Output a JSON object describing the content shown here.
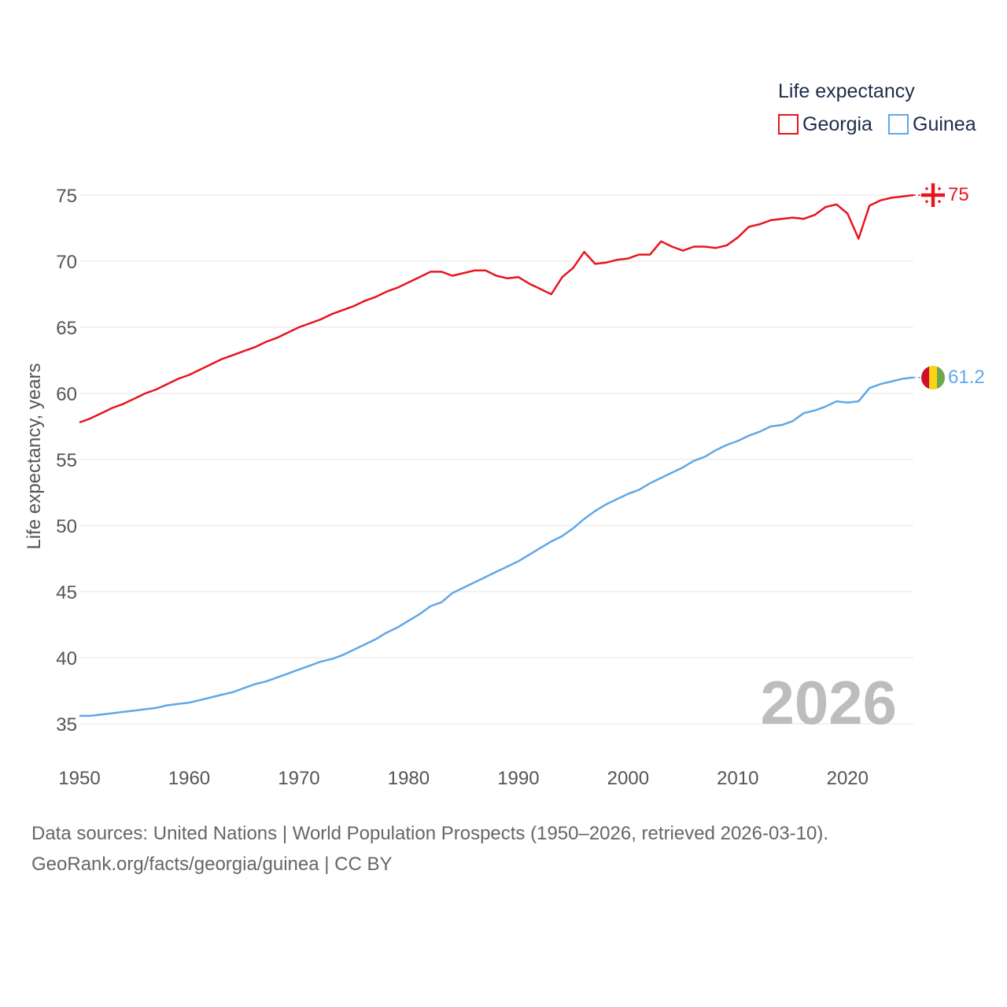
{
  "chart_data": {
    "type": "line",
    "title": "",
    "xlabel": "",
    "ylabel": "Life expectancy, years",
    "xlim": [
      1950,
      2026
    ],
    "ylim": [
      33,
      77
    ],
    "x_ticks": [
      "1950",
      "1960",
      "1970",
      "1980",
      "1990",
      "2000",
      "2010",
      "2020"
    ],
    "y_ticks": [
      "35",
      "40",
      "45",
      "50",
      "55",
      "60",
      "65",
      "70",
      "75"
    ],
    "grid": true,
    "legend_title": "Life expectancy",
    "legend_position": "top-right",
    "watermark_year": "2026",
    "x": [
      1950,
      1951,
      1952,
      1953,
      1954,
      1955,
      1956,
      1957,
      1958,
      1959,
      1960,
      1961,
      1962,
      1963,
      1964,
      1965,
      1966,
      1967,
      1968,
      1969,
      1970,
      1971,
      1972,
      1973,
      1974,
      1975,
      1976,
      1977,
      1978,
      1979,
      1980,
      1981,
      1982,
      1983,
      1984,
      1985,
      1986,
      1987,
      1988,
      1989,
      1990,
      1991,
      1992,
      1993,
      1994,
      1995,
      1996,
      1997,
      1998,
      1999,
      2000,
      2001,
      2002,
      2003,
      2004,
      2005,
      2006,
      2007,
      2008,
      2009,
      2010,
      2011,
      2012,
      2013,
      2014,
      2015,
      2016,
      2017,
      2018,
      2019,
      2020,
      2021,
      2022,
      2023,
      2024,
      2025,
      2026
    ],
    "series": [
      {
        "name": "Georgia",
        "color": "#e8141e",
        "end_label": "75",
        "values": [
          57.8,
          58.1,
          58.5,
          58.9,
          59.2,
          59.6,
          60.0,
          60.3,
          60.7,
          61.1,
          61.4,
          61.8,
          62.2,
          62.6,
          62.9,
          63.2,
          63.5,
          63.9,
          64.2,
          64.6,
          65.0,
          65.3,
          65.6,
          66.0,
          66.3,
          66.6,
          67.0,
          67.3,
          67.7,
          68.0,
          68.4,
          68.8,
          69.2,
          69.2,
          68.9,
          69.1,
          69.3,
          69.3,
          68.9,
          68.7,
          68.8,
          68.3,
          67.9,
          67.5,
          68.8,
          69.5,
          70.7,
          69.8,
          69.9,
          70.1,
          70.2,
          70.5,
          70.5,
          71.5,
          71.1,
          70.8,
          71.1,
          71.1,
          71.0,
          71.2,
          71.8,
          72.6,
          72.8,
          73.1,
          73.2,
          73.3,
          73.2,
          73.5,
          74.1,
          74.3,
          73.6,
          71.7,
          74.2,
          74.6,
          74.8,
          74.9,
          75.0
        ]
      },
      {
        "name": "Guinea",
        "color": "#5fa8e8",
        "end_label": "61.2",
        "values": [
          35.6,
          35.6,
          35.7,
          35.8,
          35.9,
          36.0,
          36.1,
          36.2,
          36.4,
          36.5,
          36.6,
          36.8,
          37.0,
          37.2,
          37.4,
          37.7,
          38.0,
          38.2,
          38.5,
          38.8,
          39.1,
          39.4,
          39.7,
          39.9,
          40.2,
          40.6,
          41.0,
          41.4,
          41.9,
          42.3,
          42.8,
          43.3,
          43.9,
          44.2,
          44.9,
          45.3,
          45.7,
          46.1,
          46.5,
          46.9,
          47.3,
          47.8,
          48.3,
          48.8,
          49.2,
          49.8,
          50.5,
          51.1,
          51.6,
          52.0,
          52.4,
          52.7,
          53.2,
          53.6,
          54.0,
          54.4,
          54.9,
          55.2,
          55.7,
          56.1,
          56.4,
          56.8,
          57.1,
          57.5,
          57.6,
          57.9,
          58.5,
          58.7,
          59.0,
          59.4,
          59.3,
          59.4,
          60.4,
          60.7,
          60.9,
          61.1,
          61.2
        ]
      }
    ]
  },
  "footer": {
    "sources": "Data sources: United Nations | World Population Prospects (1950–2026, retrieved 2026-03-10).",
    "credit": "GeoRank.org/facts/georgia/guinea | CC BY"
  }
}
